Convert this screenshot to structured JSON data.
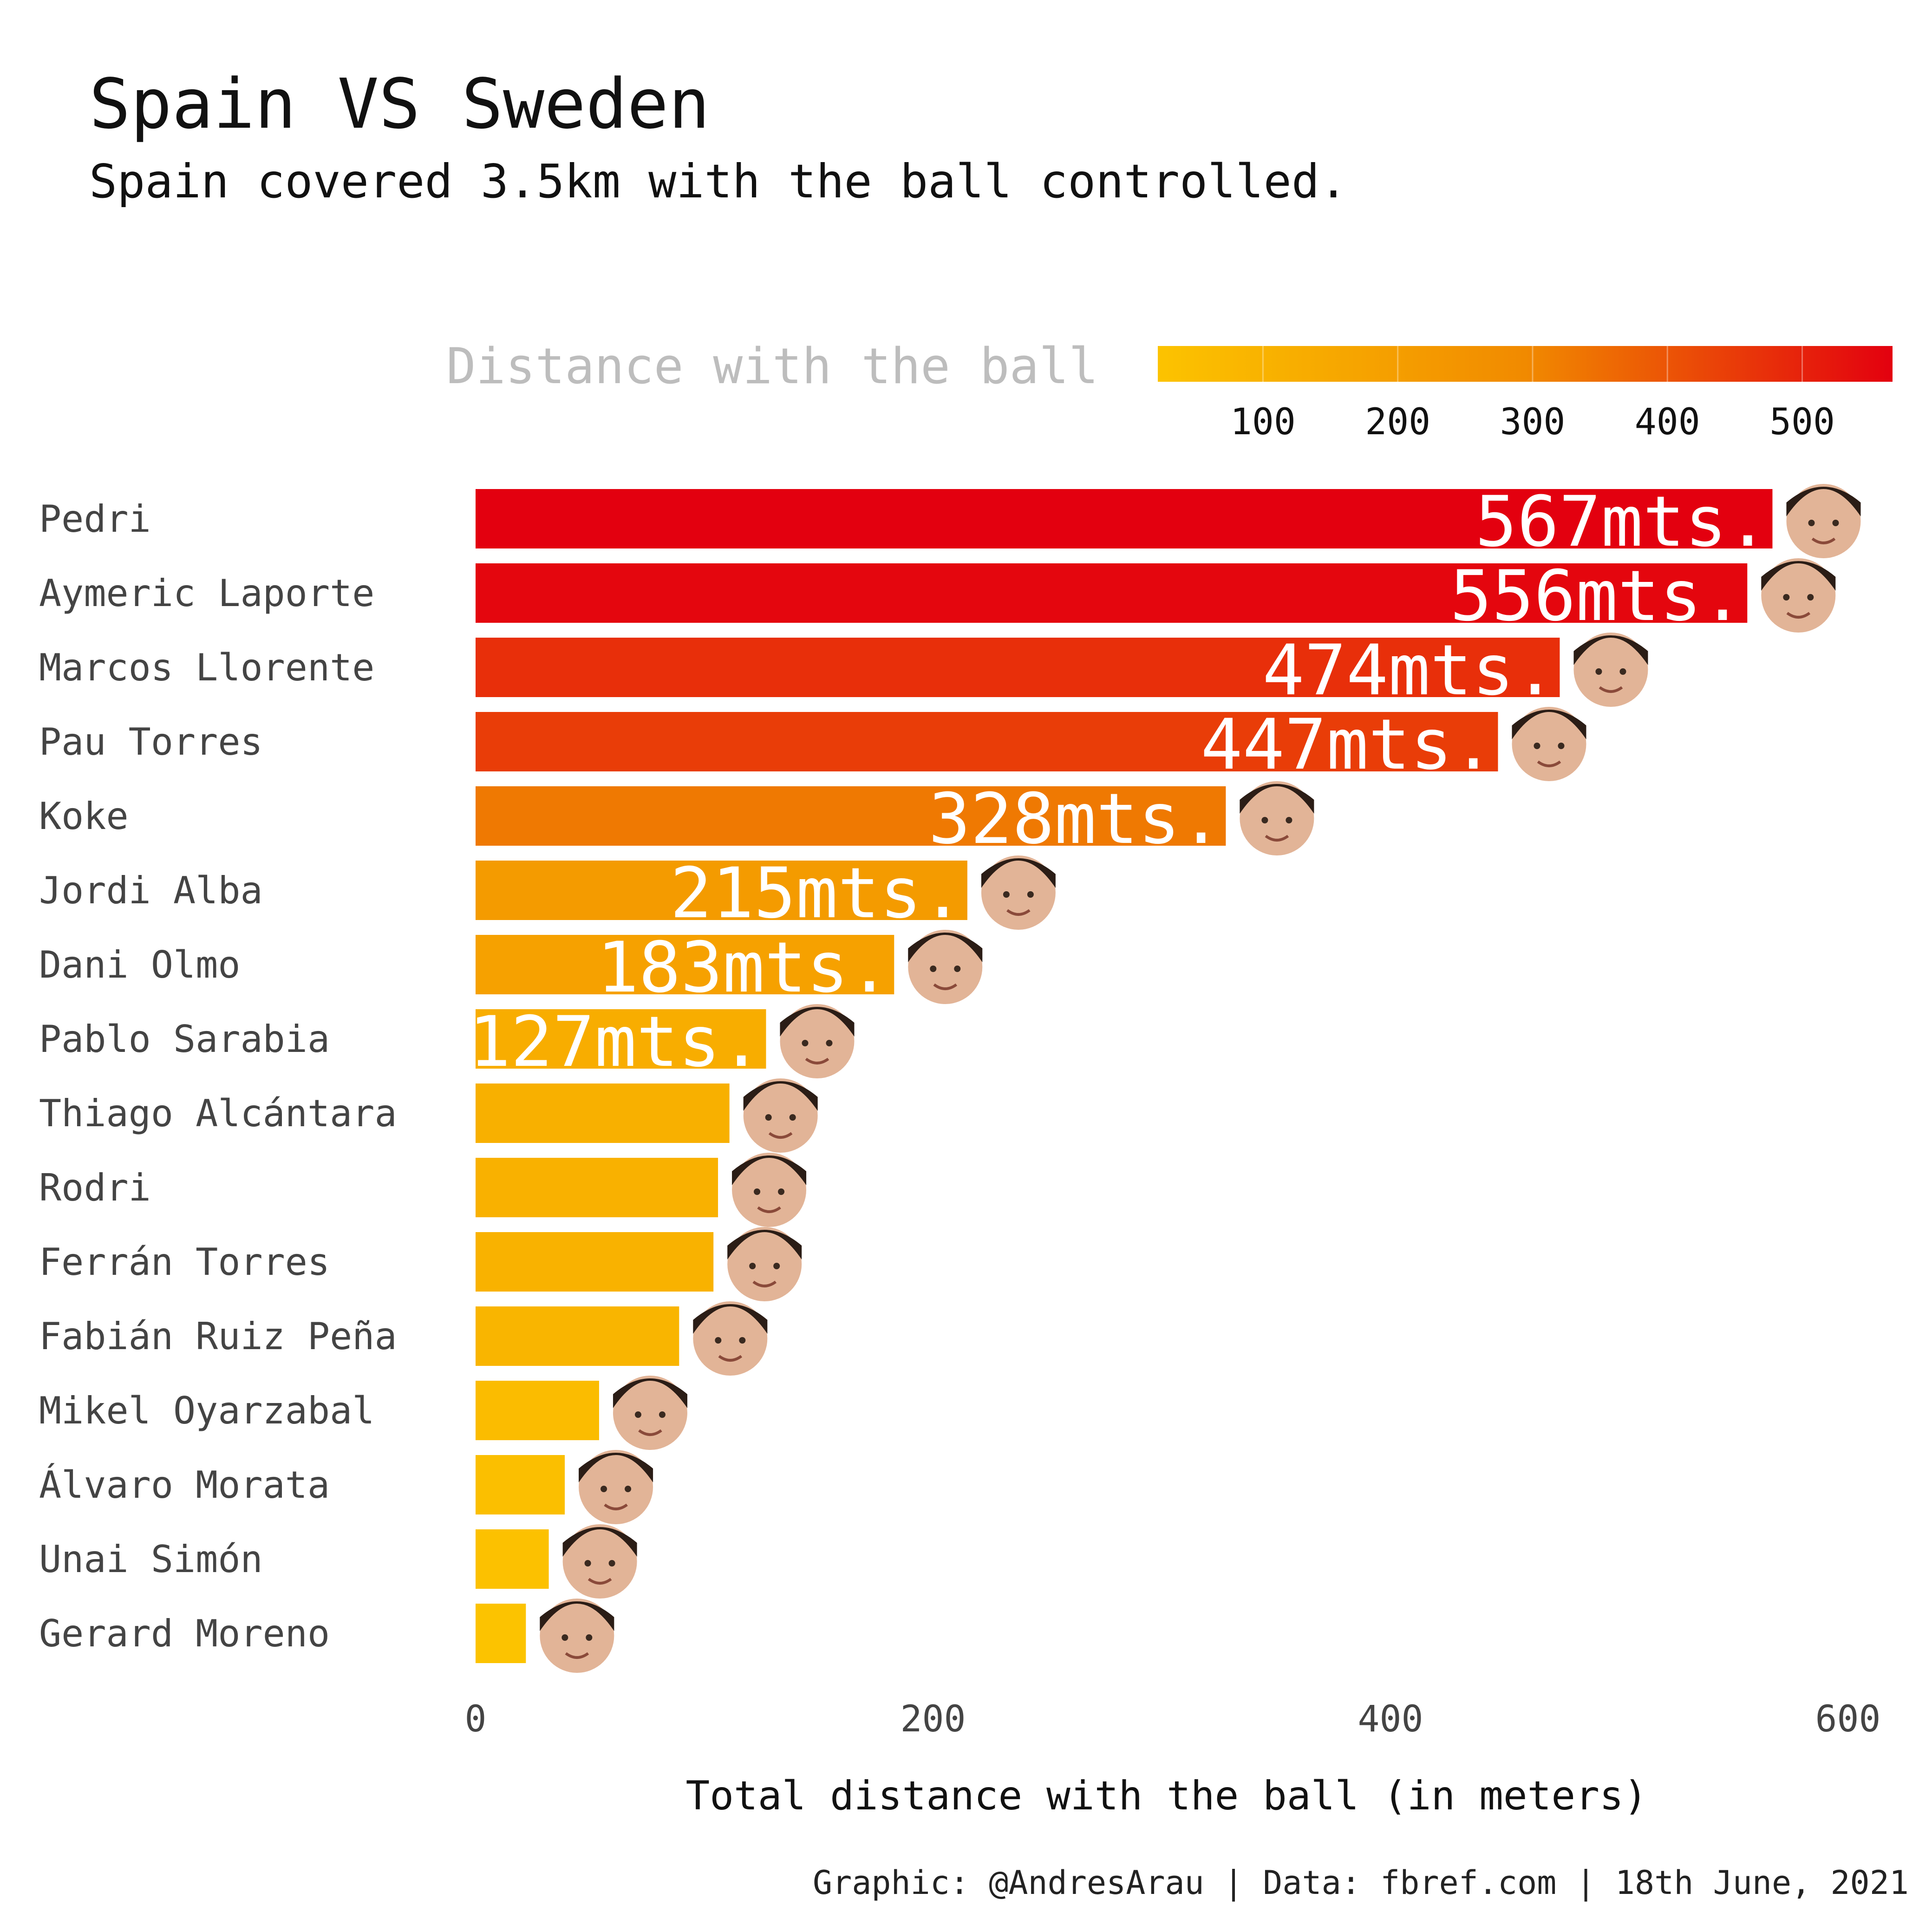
{
  "chart_data": {
    "type": "bar",
    "orientation": "horizontal",
    "title": "Spain VS Sweden",
    "subtitle": "Spain covered 3.5km with the ball controlled.",
    "xlabel": "Total distance with the ball (in meters)",
    "ylabel": "",
    "xlim": [
      0,
      620
    ],
    "x_ticks": [
      "0",
      "200",
      "400",
      "600"
    ],
    "x_tick_values": [
      0,
      200,
      400,
      600
    ],
    "grid": false,
    "legend": {
      "title": "Distance with the ball",
      "placement": "top-right",
      "range": [
        22,
        567
      ],
      "ticks": [
        "100",
        "200",
        "300",
        "400",
        "500"
      ],
      "tick_values": [
        100,
        200,
        300,
        400,
        500
      ],
      "color_low": "#fcc300",
      "color_mid": "#f18a00",
      "color_high": "#e3000f"
    },
    "categories": [
      "Pedri",
      "Aymeric Laporte",
      "Marcos Llorente",
      "Pau Torres",
      "Koke",
      "Jordi Alba",
      "Dani Olmo",
      "Pablo Sarabia",
      "Thiago Alcántara",
      "Rodri",
      "Ferrán Torres",
      "Fabián Ruiz Peña",
      "Mikel Oyarzabal",
      "Álvaro Morata",
      "Unai Simón",
      "Gerard Moreno"
    ],
    "values": [
      567,
      556,
      474,
      447,
      328,
      215,
      183,
      127,
      111,
      106,
      104,
      89,
      54,
      39,
      32,
      22
    ],
    "data_labels": [
      "567mts.",
      "556mts.",
      "474mts.",
      "447mts.",
      "328mts.",
      "215mts.",
      "183mts.",
      "127mts.",
      "",
      "",
      "",
      "",
      "",
      "",
      "",
      ""
    ]
  },
  "caption": "Graphic: @AndresArau | Data: fbref.com | 18th June, 2021",
  "icons": [
    "player-face-icon"
  ]
}
